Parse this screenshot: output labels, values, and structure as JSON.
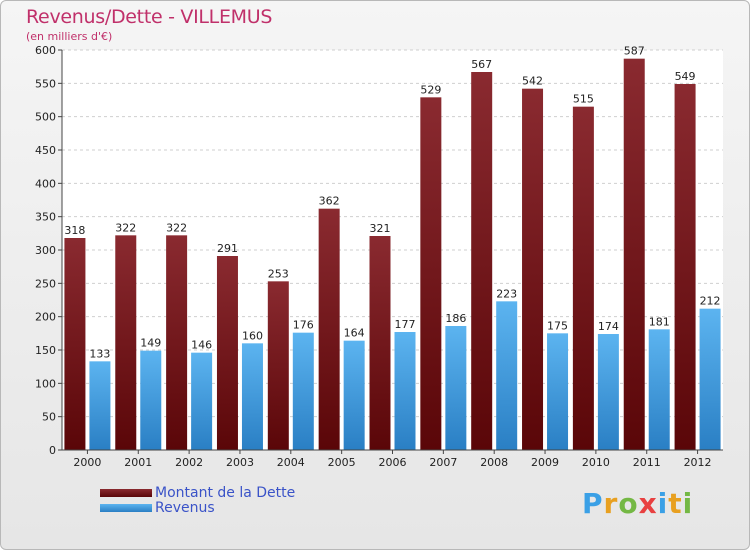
{
  "chart_data": {
    "type": "bar",
    "title": "Revenus/Dette - VILLEMUS",
    "subtitle": "(en milliers d'€)",
    "categories": [
      "2000",
      "2001",
      "2002",
      "2003",
      "2004",
      "2005",
      "2006",
      "2007",
      "2008",
      "2009",
      "2010",
      "2011",
      "2012"
    ],
    "series": [
      {
        "name": "Montant de la Dette",
        "color": "#7a1c22",
        "values": [
          318,
          322,
          322,
          291,
          253,
          362,
          321,
          529,
          567,
          542,
          515,
          587,
          549
        ]
      },
      {
        "name": "Revenus",
        "color": "#3a9be4",
        "values": [
          133,
          149,
          146,
          160,
          176,
          164,
          177,
          186,
          223,
          175,
          174,
          181,
          212
        ]
      }
    ],
    "ylim": [
      0,
      600
    ],
    "yticks": [
      0,
      50,
      100,
      150,
      200,
      250,
      300,
      350,
      400,
      450,
      500,
      550,
      600
    ],
    "grid": true,
    "legend": "bottom-left"
  },
  "brand": {
    "letters": [
      "P",
      "r",
      "o",
      "x",
      "i",
      "t",
      "i"
    ],
    "colors": [
      "#3aa0e6",
      "#e8a020",
      "#74b844",
      "#e84040",
      "#3aa0e6",
      "#e8a020",
      "#74b844"
    ]
  }
}
